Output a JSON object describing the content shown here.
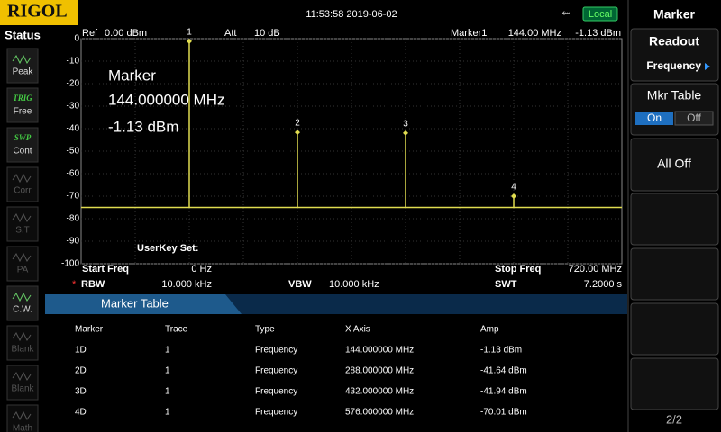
{
  "top_bar": {
    "brand": "RIGOL",
    "datetime": "11:53:58 2019-06-02",
    "local": "Local"
  },
  "status": {
    "title": "Status",
    "items": [
      {
        "label": "Peak"
      },
      {
        "tag": "TRIG",
        "label": "Free"
      },
      {
        "tag": "SWP",
        "label": "Cont"
      },
      {
        "label": "Corr"
      },
      {
        "label": "S.T"
      },
      {
        "label": "PA"
      },
      {
        "label": "C.W."
      },
      {
        "label": "Blank"
      },
      {
        "label": "Blank"
      },
      {
        "label": "Math"
      }
    ]
  },
  "plot": {
    "ref_label": "Ref",
    "ref": "0.00 dBm",
    "att_label": "Att",
    "att": "10 dB",
    "marker_label": "Marker1",
    "marker_freq": "144.00 MHz",
    "marker_amp": "-1.13 dBm",
    "readout": [
      "Marker",
      "144.000000 MHz",
      "-1.13 dBm"
    ],
    "userkey": "UserKey Set:",
    "xlim": [
      0,
      720
    ],
    "ylim": [
      -100,
      0
    ],
    "yticks": [
      0,
      -10,
      -20,
      -30,
      -40,
      -50,
      -60,
      -70,
      -80,
      -90,
      -100
    ],
    "noise_floor": -75,
    "markers": [
      {
        "label": "1",
        "x": 144,
        "amp": -1.13
      },
      {
        "label": "2",
        "x": 288,
        "amp": -41.64
      },
      {
        "label": "3",
        "x": 432,
        "amp": -41.94
      },
      {
        "label": "4",
        "x": 576,
        "amp": -70.01
      }
    ]
  },
  "settings": {
    "start_label": "Start Freq",
    "start": "0 Hz",
    "stop_label": "Stop Freq",
    "stop": "720.00 MHz",
    "rbw_label": "RBW",
    "rbw": "10.000 kHz",
    "vbw_label": "VBW",
    "vbw": "10.000 kHz",
    "swt_label": "SWT",
    "swt": "7.2000 s"
  },
  "marker_table": {
    "title": "Marker Table",
    "columns": [
      "Marker",
      "Trace",
      "Type",
      "X Axis",
      "Amp"
    ],
    "rows": [
      [
        "1D",
        "1",
        "Frequency",
        "144.000000 MHz",
        "-1.13 dBm"
      ],
      [
        "2D",
        "1",
        "Frequency",
        "288.000000 MHz",
        "-41.64 dBm"
      ],
      [
        "3D",
        "1",
        "Frequency",
        "432.000000 MHz",
        "-41.94 dBm"
      ],
      [
        "4D",
        "1",
        "Frequency",
        "576.000000 MHz",
        "-70.01 dBm"
      ]
    ]
  },
  "menu": {
    "title": "Marker",
    "readout": "Readout",
    "readout_value": "Frequency",
    "mkr_table": "Mkr Table",
    "on": "On",
    "off": "Off",
    "all_off": "All Off",
    "page": "2/2"
  }
}
